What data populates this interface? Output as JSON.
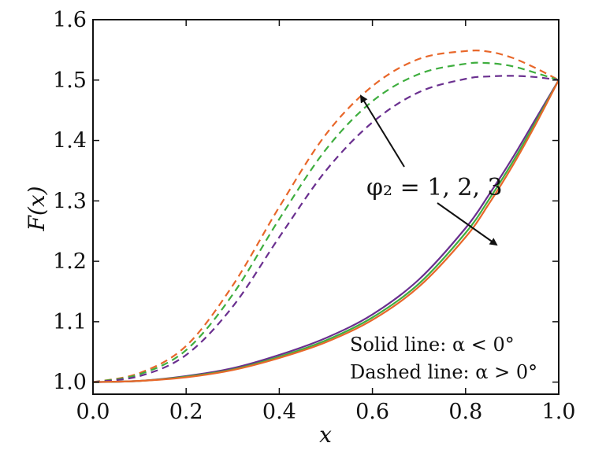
{
  "chart_data": {
    "type": "line",
    "title": "",
    "xlabel": "x",
    "ylabel": "F(x)",
    "xlim": [
      0.0,
      1.0
    ],
    "ylim": [
      0.98,
      1.6
    ],
    "x_ticks": [
      "0.0",
      "0.2",
      "0.4",
      "0.6",
      "0.8",
      "1.0"
    ],
    "y_ticks": [
      "1.0",
      "1.1",
      "1.2",
      "1.3",
      "1.4",
      "1.5",
      "1.6"
    ],
    "grid": false,
    "x": [
      0.0,
      0.1,
      0.2,
      0.3,
      0.4,
      0.5,
      0.6,
      0.7,
      0.8,
      0.85,
      0.9,
      0.95,
      1.0
    ],
    "series": [
      {
        "style": "dashed",
        "color": "#e8672a",
        "values": [
          1.0,
          1.015,
          1.06,
          1.16,
          1.29,
          1.41,
          1.49,
          1.535,
          1.548,
          1.547,
          1.537,
          1.52,
          1.5
        ]
      },
      {
        "style": "dashed",
        "color": "#3fae3f",
        "values": [
          1.0,
          1.013,
          1.053,
          1.145,
          1.27,
          1.385,
          1.465,
          1.51,
          1.527,
          1.528,
          1.523,
          1.512,
          1.5
        ]
      },
      {
        "style": "dashed",
        "color": "#6a2f8f",
        "values": [
          1.0,
          1.01,
          1.045,
          1.125,
          1.24,
          1.35,
          1.43,
          1.48,
          1.502,
          1.506,
          1.507,
          1.505,
          1.5
        ]
      },
      {
        "style": "solid",
        "color": "#6a2f8f",
        "values": [
          1.0,
          1.002,
          1.01,
          1.023,
          1.045,
          1.073,
          1.112,
          1.17,
          1.255,
          1.31,
          1.37,
          1.435,
          1.5
        ]
      },
      {
        "style": "solid",
        "color": "#3fae3f",
        "values": [
          1.0,
          1.002,
          1.009,
          1.021,
          1.042,
          1.069,
          1.107,
          1.163,
          1.247,
          1.302,
          1.363,
          1.43,
          1.5
        ]
      },
      {
        "style": "solid",
        "color": "#e8672a",
        "values": [
          1.0,
          1.002,
          1.008,
          1.02,
          1.04,
          1.066,
          1.103,
          1.158,
          1.24,
          1.295,
          1.357,
          1.426,
          1.5
        ]
      }
    ],
    "annotations": {
      "phi_text": "φ₂ = 1, 2, 3",
      "solid_text": "Solid line: α < 0°",
      "dashed_text": "Dashed line: α > 0°"
    }
  }
}
